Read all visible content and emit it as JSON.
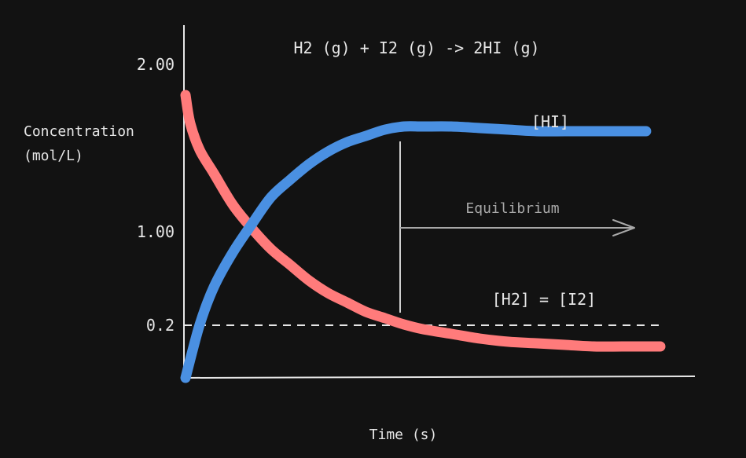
{
  "chart_data": {
    "type": "line",
    "title": "H2 (g) + I2 (g) -> 2HI (g)",
    "xlabel": "Time (s)",
    "ylabel_line1": "Concentration",
    "ylabel_line2": "(mol/L)",
    "yticks": [
      {
        "value": 2.0,
        "label": "2.00"
      },
      {
        "value": 1.0,
        "label": "1.00"
      },
      {
        "value": 0.2,
        "label": "0.2"
      }
    ],
    "ylim": [
      0,
      2.2
    ],
    "xlim": [
      0,
      1
    ],
    "grid": false,
    "series": [
      {
        "name": "[HI]",
        "color": "#4a90e2",
        "x": [
          0.0,
          0.03,
          0.06,
          0.1,
          0.14,
          0.18,
          0.22,
          0.26,
          0.3,
          0.34,
          0.38,
          0.42,
          0.46,
          0.5,
          0.56,
          0.62,
          0.68,
          0.74,
          0.8,
          0.86,
          0.92,
          0.97
        ],
        "y": [
          0.0,
          0.34,
          0.58,
          0.8,
          0.98,
          1.15,
          1.26,
          1.36,
          1.44,
          1.5,
          1.54,
          1.58,
          1.6,
          1.6,
          1.6,
          1.59,
          1.58,
          1.57,
          1.57,
          1.57,
          1.57,
          1.57
        ]
      },
      {
        "name": "[H2] = [I2]",
        "color": "#ff7b7b",
        "x": [
          0.0,
          0.01,
          0.03,
          0.06,
          0.1,
          0.14,
          0.18,
          0.22,
          0.26,
          0.3,
          0.34,
          0.38,
          0.42,
          0.46,
          0.5,
          0.56,
          0.62,
          0.68,
          0.74,
          0.8,
          0.86,
          0.92,
          0.97,
          1.0
        ],
        "y": [
          1.8,
          1.62,
          1.45,
          1.3,
          1.1,
          0.95,
          0.82,
          0.72,
          0.62,
          0.54,
          0.48,
          0.42,
          0.38,
          0.34,
          0.31,
          0.28,
          0.25,
          0.23,
          0.22,
          0.21,
          0.2,
          0.2,
          0.2,
          0.2
        ]
      }
    ],
    "reference_line": {
      "y": 0.2
    },
    "annotation": {
      "label": "Equilibrium",
      "x": 0.47
    }
  },
  "colors": {
    "background": "#121212",
    "axis": "#e6e6e6",
    "annotation": "#a8a8a8",
    "hi": "#4a90e2",
    "h2": "#ff7b7b"
  }
}
